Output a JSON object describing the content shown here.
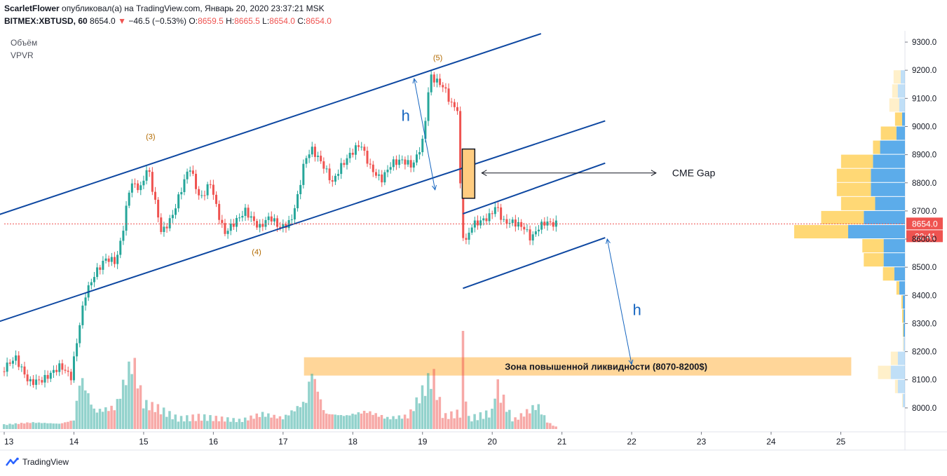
{
  "header": {
    "author": "ScarletFlower",
    "published_text": "опубликовал(а) на TradingView.com, Январь 20, 2020 23:37:21 MSK",
    "symbol": "BITMEX:XBTUSD, 60",
    "last": "8654.0",
    "change_arrow": "▼",
    "change": "−46.5 (−0.53%)",
    "o_label": "O:",
    "o": "8659.5",
    "h_label": "H:",
    "h": "8665.5",
    "l_label": "L:",
    "l": "8654.0",
    "c_label": "C:",
    "c": "8654.0"
  },
  "indicators": [
    "Объём",
    "VPVR"
  ],
  "footer": {
    "brand": "TradingView"
  },
  "colors": {
    "up": "#26a69a",
    "down": "#ef5350",
    "channel": "#0d47a1",
    "zone": "#ffcc80",
    "gap_box": "#ffcc80",
    "vpvr_up": "#4aa3e8",
    "vpvr_down": "#ffd466"
  },
  "chart_data": {
    "type": "candlestick",
    "timeframe": "60",
    "ylim": [
      7920,
      9340
    ],
    "y_ticks": [
      "9300.0",
      "9200.0",
      "9100.0",
      "9000.0",
      "8900.0",
      "8800.0",
      "8700.0",
      "8600.0",
      "8500.0",
      "8400.0",
      "8300.0",
      "8200.0",
      "8100.0",
      "8000.0"
    ],
    "x_ticks": [
      "13",
      "14",
      "15",
      "16",
      "17",
      "18",
      "19",
      "20",
      "21",
      "22",
      "23",
      "24",
      "25"
    ],
    "current_price": {
      "label": "8654.0",
      "value": 8654.0
    },
    "countdown": "22:41",
    "price_path": [
      [
        13.0,
        8130
      ],
      [
        13.2,
        8180
      ],
      [
        13.4,
        8090
      ],
      [
        13.6,
        8100
      ],
      [
        13.85,
        8150
      ],
      [
        14.0,
        8110
      ],
      [
        14.12,
        8290
      ],
      [
        14.2,
        8400
      ],
      [
        14.35,
        8480
      ],
      [
        14.5,
        8530
      ],
      [
        14.65,
        8520
      ],
      [
        14.75,
        8640
      ],
      [
        14.85,
        8800
      ],
      [
        15.0,
        8780
      ],
      [
        15.1,
        8860
      ],
      [
        15.2,
        8740
      ],
      [
        15.3,
        8620
      ],
      [
        15.45,
        8680
      ],
      [
        15.6,
        8790
      ],
      [
        15.7,
        8860
      ],
      [
        15.85,
        8740
      ],
      [
        16.0,
        8800
      ],
      [
        16.1,
        8700
      ],
      [
        16.2,
        8620
      ],
      [
        16.35,
        8660
      ],
      [
        16.5,
        8700
      ],
      [
        16.7,
        8640
      ],
      [
        16.85,
        8680
      ],
      [
        17.0,
        8640
      ],
      [
        17.15,
        8660
      ],
      [
        17.25,
        8750
      ],
      [
        17.35,
        8880
      ],
      [
        17.45,
        8920
      ],
      [
        17.6,
        8870
      ],
      [
        17.75,
        8800
      ],
      [
        17.85,
        8850
      ],
      [
        18.0,
        8900
      ],
      [
        18.15,
        8940
      ],
      [
        18.3,
        8850
      ],
      [
        18.45,
        8810
      ],
      [
        18.6,
        8870
      ],
      [
        18.75,
        8880
      ],
      [
        18.9,
        8860
      ],
      [
        19.05,
        8950
      ],
      [
        19.15,
        9180
      ],
      [
        19.25,
        9160
      ],
      [
        19.35,
        9140
      ],
      [
        19.45,
        9080
      ],
      [
        19.55,
        9060
      ],
      [
        19.6,
        8650
      ],
      [
        19.65,
        8580
      ],
      [
        19.75,
        8650
      ],
      [
        19.85,
        8660
      ],
      [
        20.0,
        8680
      ],
      [
        20.1,
        8720
      ],
      [
        20.2,
        8660
      ],
      [
        20.35,
        8660
      ],
      [
        20.5,
        8640
      ],
      [
        20.6,
        8600
      ],
      [
        20.7,
        8640
      ],
      [
        20.8,
        8660
      ],
      [
        20.92,
        8654
      ]
    ],
    "wave_labels": [
      {
        "text": "(3)",
        "x": 15.1,
        "y": 8955
      },
      {
        "text": "(4)",
        "x": 16.62,
        "y": 8545
      },
      {
        "text": "(5)",
        "x": 19.22,
        "y": 9235
      }
    ],
    "trendlines": [
      {
        "x": [
          12.72,
          20.7
        ],
        "y": [
          8670,
          9330
        ]
      },
      {
        "x": [
          12.72,
          21.62
        ],
        "y": [
          8290,
          9020
        ]
      },
      {
        "x": [
          19.58,
          21.62
        ],
        "y": [
          8690,
          8870
        ]
      },
      {
        "x": [
          19.58,
          21.62
        ],
        "y": [
          8425,
          8605
        ]
      }
    ],
    "arrows": [
      {
        "label": "h",
        "from": [
          18.88,
          9170
        ],
        "to": [
          19.18,
          8775
        ]
      },
      {
        "label": "h",
        "from": [
          21.65,
          8600
        ],
        "to": [
          22.0,
          8155
        ]
      }
    ],
    "cme_gap": {
      "label": "CME Gap",
      "x": [
        19.57,
        19.75
      ],
      "y": [
        8745,
        8920
      ],
      "arrow_x": [
        19.85,
        22.35
      ],
      "arrow_y": 8835
    },
    "liquidity_zone": {
      "label": "Зона повышенной ликвидности (8070-8200$)",
      "x": [
        17.3,
        25.15
      ],
      "y": [
        8115,
        8180
      ]
    },
    "volume_axis_max": 250,
    "volume_path": [
      [
        13.0,
        10
      ],
      [
        13.4,
        15
      ],
      [
        13.8,
        12
      ],
      [
        14.0,
        20
      ],
      [
        14.1,
        120
      ],
      [
        14.3,
        40
      ],
      [
        14.6,
        50
      ],
      [
        14.75,
        120
      ],
      [
        14.85,
        160
      ],
      [
        15.0,
        60
      ],
      [
        15.2,
        50
      ],
      [
        15.5,
        25
      ],
      [
        15.8,
        30
      ],
      [
        16.1,
        25
      ],
      [
        16.4,
        20
      ],
      [
        16.7,
        35
      ],
      [
        17.0,
        25
      ],
      [
        17.35,
        65
      ],
      [
        17.4,
        140
      ],
      [
        17.6,
        35
      ],
      [
        17.9,
        30
      ],
      [
        18.2,
        40
      ],
      [
        18.5,
        25
      ],
      [
        18.8,
        30
      ],
      [
        19.15,
        130
      ],
      [
        19.3,
        30
      ],
      [
        19.55,
        40
      ],
      [
        19.58,
        230
      ],
      [
        19.65,
        25
      ],
      [
        20.0,
        40
      ],
      [
        20.05,
        110
      ],
      [
        20.3,
        20
      ],
      [
        20.65,
        55
      ],
      [
        20.8,
        15
      ],
      [
        20.92,
        5
      ]
    ],
    "vpvr": [
      {
        "price": 9175,
        "up": 6,
        "down": 10
      },
      {
        "price": 9125,
        "up": 10,
        "down": 8
      },
      {
        "price": 9075,
        "up": 8,
        "down": 14
      },
      {
        "price": 9025,
        "up": 4,
        "down": 10
      },
      {
        "price": 8975,
        "up": 12,
        "down": 22
      },
      {
        "price": 8925,
        "up": 35,
        "down": 10
      },
      {
        "price": 8875,
        "up": 45,
        "down": 45
      },
      {
        "price": 8825,
        "up": 48,
        "down": 48
      },
      {
        "price": 8775,
        "up": 48,
        "down": 48
      },
      {
        "price": 8725,
        "up": 42,
        "down": 48
      },
      {
        "price": 8675,
        "up": 58,
        "down": 60
      },
      {
        "price": 8625,
        "up": 80,
        "down": 76
      },
      {
        "price": 8575,
        "up": 30,
        "down": 30
      },
      {
        "price": 8525,
        "up": 30,
        "down": 28
      },
      {
        "price": 8475,
        "up": 15,
        "down": 16
      },
      {
        "price": 8425,
        "up": 8,
        "down": 4
      },
      {
        "price": 8375,
        "up": 3,
        "down": 2
      },
      {
        "price": 8325,
        "up": 2,
        "down": 2
      },
      {
        "price": 8275,
        "up": 2,
        "down": 1
      },
      {
        "price": 8225,
        "up": 2,
        "down": 1
      },
      {
        "price": 8175,
        "up": 10,
        "down": 10
      },
      {
        "price": 8125,
        "up": 20,
        "down": 18
      },
      {
        "price": 8075,
        "up": 10,
        "down": 4
      },
      {
        "price": 8025,
        "up": 3,
        "down": 1
      }
    ]
  }
}
